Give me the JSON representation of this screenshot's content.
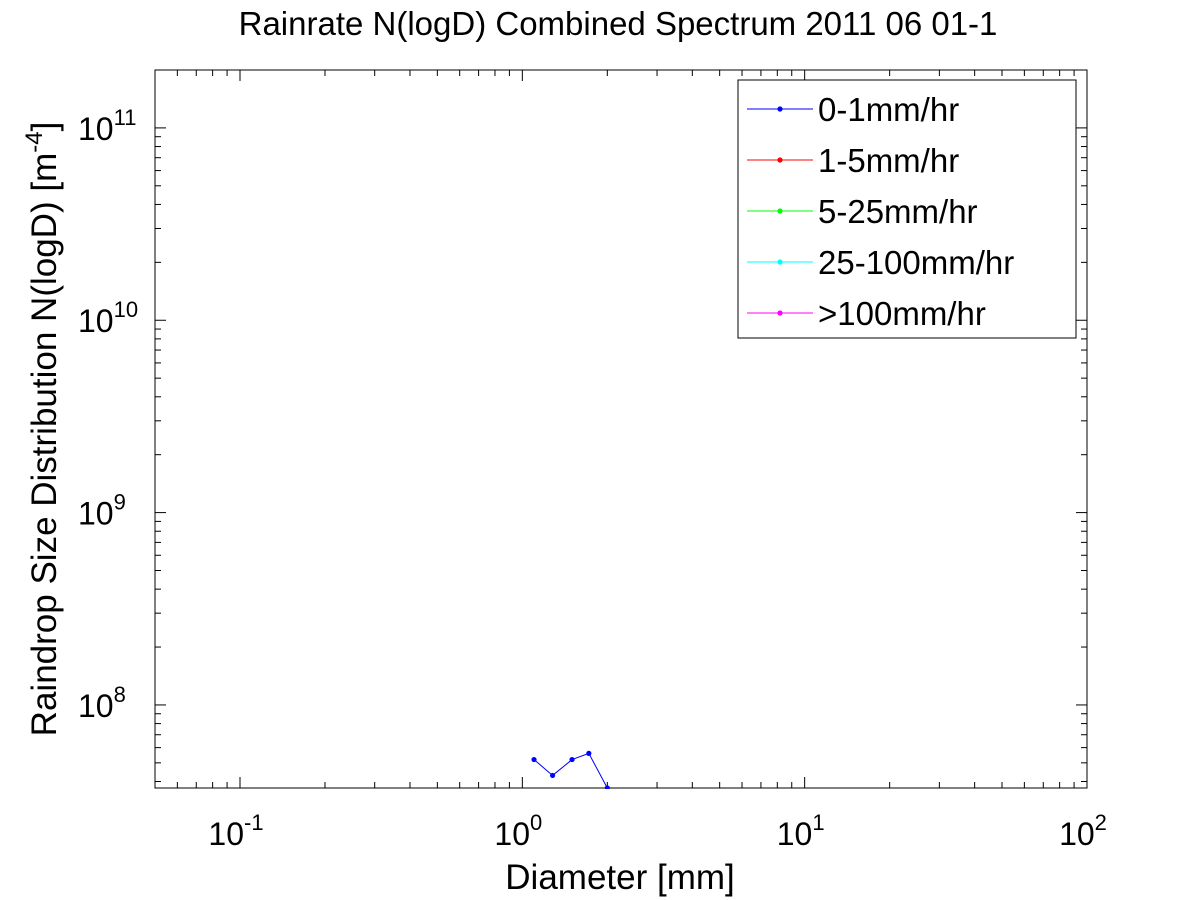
{
  "chart_data": {
    "type": "line",
    "title": "Rainrate N(logD) Combined Spectrum 2011 06 01-1",
    "xlabel": "Diameter [mm]",
    "ylabel": "Raindrop Size Distribution N(logD) [m",
    "ylabel_sup": "-4",
    "ylabel_close": "]",
    "xscale": "log",
    "yscale": "log",
    "xlim": [
      0.05,
      100
    ],
    "ylim": [
      37000000,
      200000000000
    ],
    "grid": false,
    "legend_position": "top-right",
    "x_ticks": [
      {
        "value": 0.1,
        "base": "10",
        "exp": "-1"
      },
      {
        "value": 1,
        "base": "10",
        "exp": "0"
      },
      {
        "value": 10,
        "base": "10",
        "exp": "1"
      },
      {
        "value": 100,
        "base": "10",
        "exp": "2"
      }
    ],
    "y_ticks": [
      {
        "value": 100000000,
        "base": "10",
        "exp": "8"
      },
      {
        "value": 1000000000,
        "base": "10",
        "exp": "9"
      },
      {
        "value": 10000000000,
        "base": "10",
        "exp": "10"
      },
      {
        "value": 100000000000,
        "base": "10",
        "exp": "11"
      }
    ],
    "series": [
      {
        "name": "0-1mm/hr",
        "color": "#0000ff",
        "x": [
          1.1,
          1.28,
          1.5,
          1.72,
          2.0
        ],
        "y": [
          52000000,
          43000000,
          52000000,
          56000000,
          37000000
        ]
      },
      {
        "name": "1-5mm/hr",
        "color": "#ff0000",
        "x": [],
        "y": []
      },
      {
        "name": "5-25mm/hr",
        "color": "#00ff00",
        "x": [],
        "y": []
      },
      {
        "name": "25-100mm/hr",
        "color": "#00ffff",
        "x": [],
        "y": []
      },
      {
        "name": ">100mm/hr",
        "color": "#ff00ff",
        "x": [],
        "y": []
      }
    ]
  }
}
